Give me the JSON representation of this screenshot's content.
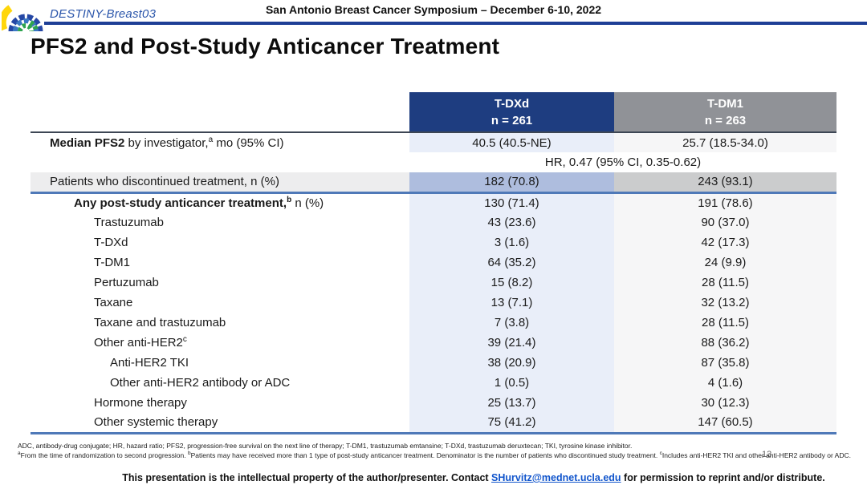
{
  "header": {
    "logo_label": "DESTINY-Breast03",
    "symposium": "San Antonio Breast Cancer Symposium – December 6-10, 2022"
  },
  "title": "PFS2 and Post-Study Anticancer Treatment",
  "table": {
    "columns": [
      {
        "name": "T-DXd",
        "n": "n = 261"
      },
      {
        "name": "T-DM1",
        "n": "n = 263"
      }
    ],
    "rows": [
      {
        "type": "data",
        "bold": "Median PFS2",
        "text": " by investigator,",
        "sup": "a",
        "tail": " mo (95% CI)",
        "indent": 0,
        "tdxd": "40.5 (40.5-NE)",
        "tdm1": "25.7 (18.5-34.0)",
        "shade": "light"
      },
      {
        "type": "span",
        "text": "HR, 0.47 (95% CI, 0.35-0.62)"
      },
      {
        "type": "data",
        "text": "Patients who discontinued treatment, n (%)",
        "indent": 0,
        "tdxd": "182 (70.8)",
        "tdm1": "243 (93.1)",
        "shade": "medium",
        "label_shade": true,
        "divider_below": true
      },
      {
        "type": "data",
        "bold": "Any post-study anticancer treatment,",
        "sup": "b",
        "tail": " n (%)",
        "indent": 1,
        "tdxd": "130 (71.4)",
        "tdm1": "191 (78.6)",
        "shade": "light"
      },
      {
        "type": "data",
        "text": "Trastuzumab",
        "indent": 2,
        "tdxd": "43 (23.6)",
        "tdm1": "90 (37.0)",
        "shade": "light"
      },
      {
        "type": "data",
        "text": "T-DXd",
        "indent": 2,
        "tdxd": "3 (1.6)",
        "tdm1": "42 (17.3)",
        "shade": "light"
      },
      {
        "type": "data",
        "text": "T-DM1",
        "indent": 2,
        "tdxd": "64 (35.2)",
        "tdm1": "24 (9.9)",
        "shade": "light"
      },
      {
        "type": "data",
        "text": "Pertuzumab",
        "indent": 2,
        "tdxd": "15 (8.2)",
        "tdm1": "28 (11.5)",
        "shade": "light"
      },
      {
        "type": "data",
        "text": "Taxane",
        "indent": 2,
        "tdxd": "13 (7.1)",
        "tdm1": "32 (13.2)",
        "shade": "light"
      },
      {
        "type": "data",
        "text": "Taxane and trastuzumab",
        "indent": 2,
        "tdxd": "7 (3.8)",
        "tdm1": "28 (11.5)",
        "shade": "light"
      },
      {
        "type": "data",
        "text": "Other anti-HER2",
        "sup": "c",
        "indent": 2,
        "tdxd": "39 (21.4)",
        "tdm1": "88 (36.2)",
        "shade": "light"
      },
      {
        "type": "data",
        "text": "Anti-HER2 TKI",
        "indent": 3,
        "tdxd": "38 (20.9)",
        "tdm1": "87 (35.8)",
        "shade": "light"
      },
      {
        "type": "data",
        "text": "Other anti-HER2 antibody or ADC",
        "indent": 3,
        "tdxd": "1 (0.5)",
        "tdm1": "4 (1.6)",
        "shade": "light"
      },
      {
        "type": "data",
        "text": "Hormone therapy",
        "indent": 2,
        "tdxd": "25 (13.7)",
        "tdm1": "30 (12.3)",
        "shade": "light"
      },
      {
        "type": "data",
        "text": "Other systemic therapy",
        "indent": 2,
        "tdxd": "75 (41.2)",
        "tdm1": "147 (60.5)",
        "shade": "light"
      }
    ]
  },
  "footnotes": {
    "abbrev": "ADC, antibody-drug conjugate; HR, hazard ratio; PFS2, progression-free survival on the next line of therapy; T-DM1, trastuzumab emtansine; T-DXd, trastuzumab deruxtecan; TKI, tyrosine kinase inhibitor.",
    "marks": {
      "a": "a",
      "b": "b",
      "c": "c"
    },
    "note_a": "From the time of randomization to second progression. ",
    "note_b": "Patients may have received more than 1 type of post-study anticancer treatment. Denominator is the number of patients who discontinued study treatment. ",
    "note_c": "Includes anti-HER2 TKI and other anti-HER2 antibody or ADC."
  },
  "page_number": "13",
  "footer": {
    "text_before": "This presentation is the intellectual property of the author/presenter. Contact ",
    "email": "SHurvitz@mednet.ucla.edu",
    "text_after": " for permission to reprint and/or distribute."
  },
  "colors": {
    "tdxd_header": "#1e3d80",
    "tdm1_header": "#909297",
    "tdxd_cell_light": "#e9eef9",
    "tdm1_cell_light": "#f6f6f7",
    "tdxd_cell_medium": "#aebdde",
    "tdm1_cell_medium": "#cbcccd",
    "label_gray_cell": "#ededee",
    "top_rule_blue": "#1e3f96",
    "divider_blue": "#4f79b8",
    "link_blue": "#1155cc",
    "logo_text_blue": "#2a55aa"
  }
}
